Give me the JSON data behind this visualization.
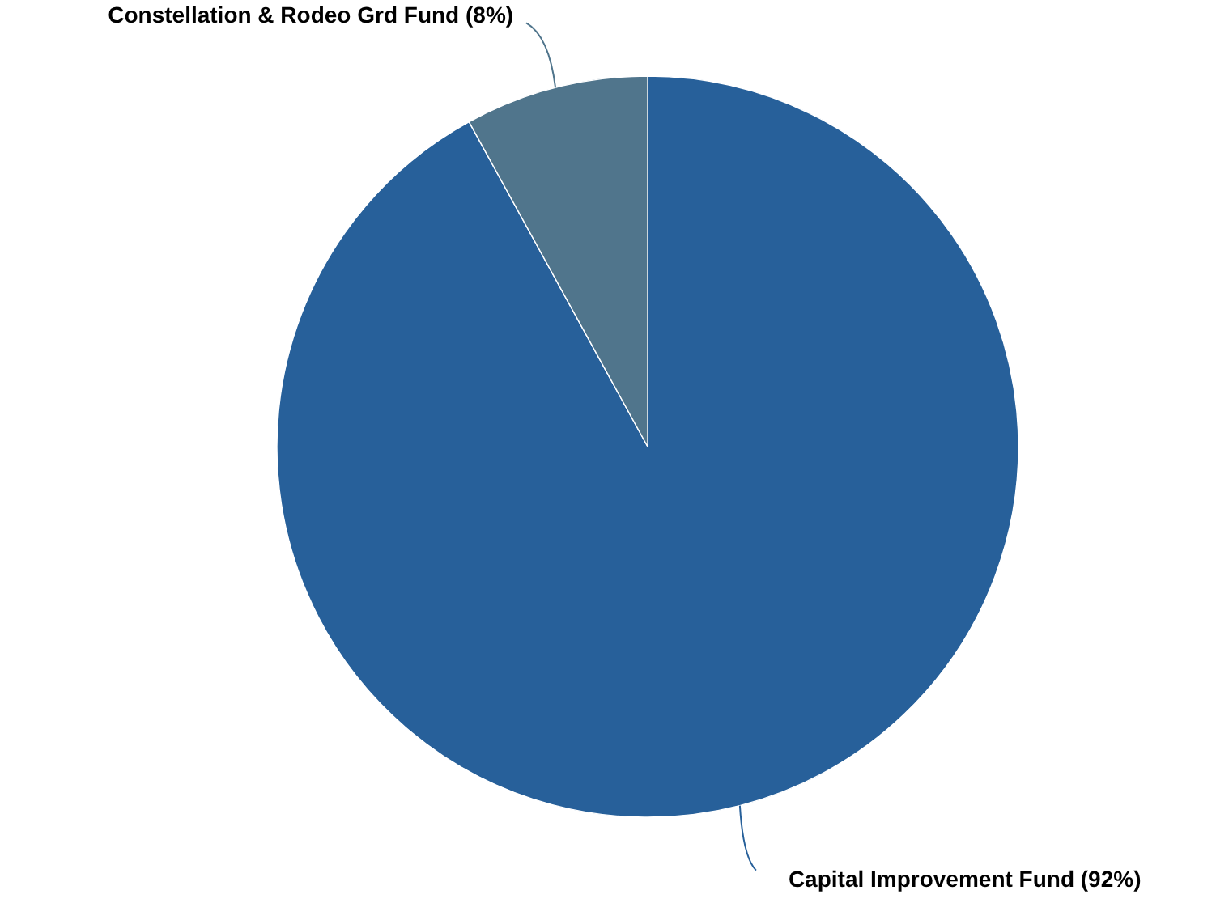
{
  "chart_data": {
    "type": "pie",
    "categories": [
      "Capital Improvement Fund (92%)",
      "Constellation & Rodeo Grd Fund (8%)"
    ],
    "values": [
      92,
      8
    ],
    "colors": [
      "#27609a",
      "#50758c"
    ]
  }
}
